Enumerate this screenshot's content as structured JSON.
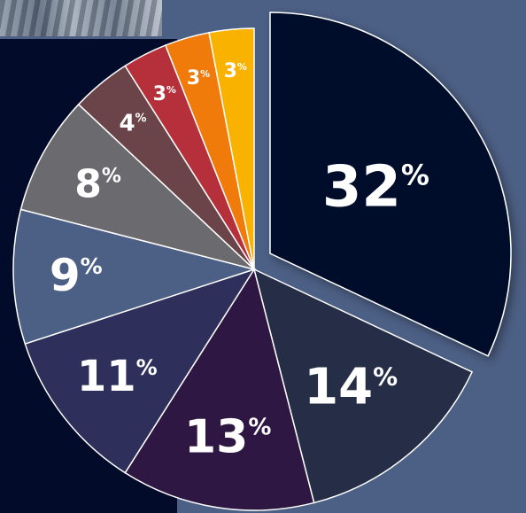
{
  "chart_data": {
    "type": "pie",
    "title": "",
    "slices": [
      {
        "value": 32,
        "label": "32%",
        "color": "#020c2a",
        "exploded": true
      },
      {
        "value": 14,
        "label": "14%",
        "color": "#252d47"
      },
      {
        "value": 13,
        "label": "13%",
        "color": "#2e1742"
      },
      {
        "value": 11,
        "label": "11%",
        "color": "#2f2f5c"
      },
      {
        "value": 9,
        "label": "9%",
        "color": "#4c5f84"
      },
      {
        "value": 8,
        "label": "8%",
        "color": "#6b6a6e"
      },
      {
        "value": 4,
        "label": "4%",
        "color": "#6a4448"
      },
      {
        "value": 3,
        "label": "3%",
        "color": "#b5303a"
      },
      {
        "value": 3,
        "label": "3%",
        "color": "#f07a0a"
      },
      {
        "value": 3,
        "label": "3%",
        "color": "#f9b200"
      }
    ],
    "colors": {
      "background": "#4c5f84",
      "panel": "#020c2a",
      "slice_border": "#ffffff",
      "label_text": "#ffffff"
    }
  }
}
